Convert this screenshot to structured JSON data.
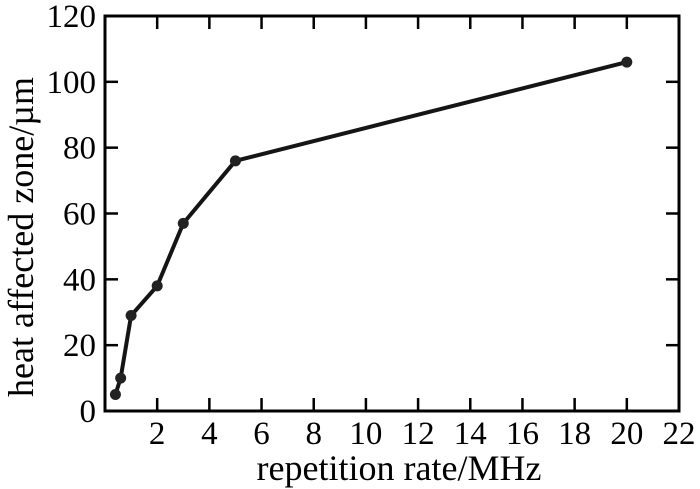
{
  "figure": {
    "background": "#ffffff",
    "frame_color": "#000000",
    "text_color": "#000000",
    "line_color": "#151515",
    "marker_color": "#222222"
  },
  "chart_data": {
    "type": "line",
    "title": "",
    "xlabel": "repetition rate/MHz",
    "ylabel": "heat affected zone/µm",
    "xlim": [
      0,
      22
    ],
    "ylim": [
      0,
      120
    ],
    "xticks": [
      2,
      4,
      6,
      8,
      10,
      12,
      14,
      16,
      18,
      20,
      22
    ],
    "yticks": [
      0,
      20,
      40,
      60,
      80,
      100,
      120
    ],
    "grid": false,
    "legend": null,
    "marker": "circle",
    "series": [
      {
        "name": "heat affected zone",
        "x": [
          0.4,
          0.6,
          1,
          2,
          3,
          5,
          20
        ],
        "y": [
          5,
          10,
          29,
          38,
          57,
          76,
          106
        ]
      }
    ]
  }
}
